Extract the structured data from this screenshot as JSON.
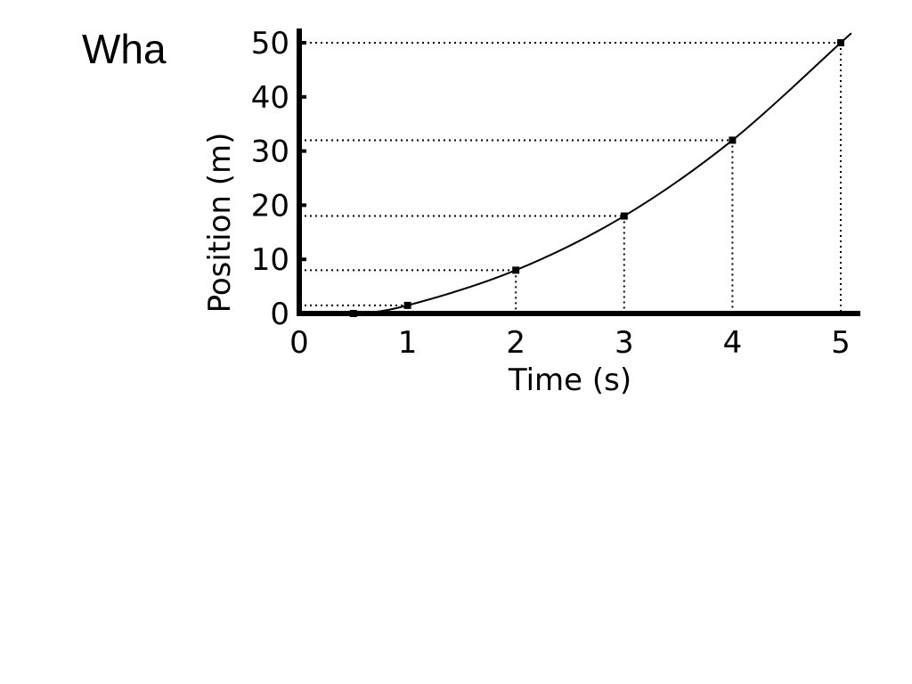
{
  "slide": {
    "title": "Wha"
  },
  "chart_data": {
    "type": "line",
    "title": "",
    "xlabel": "Time (s)",
    "ylabel": "Position (m)",
    "xlim": [
      0,
      5
    ],
    "ylim": [
      0,
      50
    ],
    "xticks": [
      "0",
      "1",
      "2",
      "3",
      "4",
      "5"
    ],
    "yticks": [
      "0",
      "10",
      "20",
      "30",
      "40",
      "50"
    ],
    "grid": "dotted guide lines to marked points",
    "series": [
      {
        "x": [
          0,
          0.5,
          1,
          2,
          3,
          4,
          5
        ],
        "y": [
          0,
          0,
          1.5,
          8,
          18,
          32,
          50
        ],
        "marked_points": [
          {
            "x": 0.5,
            "y": 0
          },
          {
            "x": 1,
            "y": 1.5
          },
          {
            "x": 2,
            "y": 8
          },
          {
            "x": 3,
            "y": 18
          },
          {
            "x": 4,
            "y": 32
          },
          {
            "x": 5,
            "y": 50
          }
        ]
      }
    ],
    "colors": {
      "line": "#000000",
      "axis": "#000000",
      "guide": "#000000"
    }
  }
}
